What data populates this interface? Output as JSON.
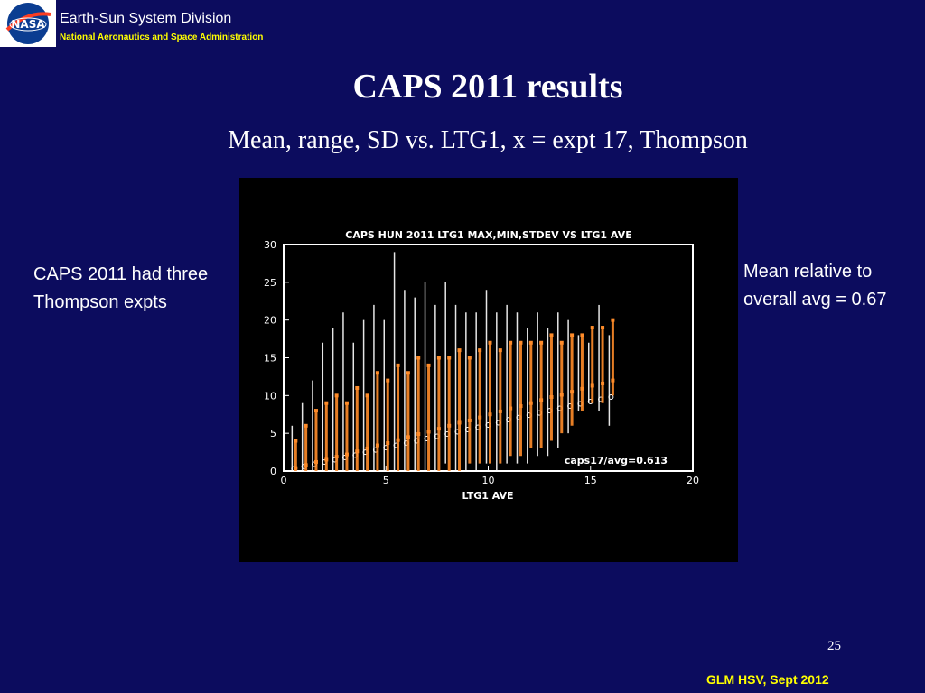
{
  "header": {
    "org_title": "Earth-Sun System Division",
    "org_subtitle": "National Aeronautics and Space Administration",
    "logo_text": "NASA"
  },
  "slide": {
    "title": "CAPS 2011 results",
    "subtitle": "Mean, range, SD vs. LTG1, x = expt 17, Thompson",
    "left_note": "CAPS 2011 had three Thompson expts",
    "right_note": "Mean relative to overall avg = 0.67",
    "page_number": "25",
    "footer": "GLM HSV, Sept 2012"
  },
  "chart_data": {
    "type": "scatter",
    "title": "CAPS HUN 2011 LTG1 MAX,MIN,STDEV VS LTG1 AVE",
    "xlabel": "LTG1 AVE",
    "ylabel": "",
    "xlim": [
      0,
      20
    ],
    "ylim": [
      0,
      30
    ],
    "x_ticks": [
      "0",
      "5",
      "10",
      "15",
      "20"
    ],
    "y_ticks": [
      "0",
      "5",
      "10",
      "15",
      "20",
      "25",
      "30"
    ],
    "annotation": "caps17/avg=0.613",
    "colors": {
      "all_members": "#ffffff",
      "expt17": "#ff8c2a",
      "background": "#000000"
    },
    "series": [
      {
        "values": [
          {
            "x": 0.5,
            "mean": 0.3,
            "min": 0,
            "max": 6
          },
          {
            "x": 1.0,
            "mean": 0.6,
            "min": 0,
            "max": 9
          },
          {
            "x": 1.5,
            "mean": 0.9,
            "min": 0,
            "max": 12
          },
          {
            "x": 2.0,
            "mean": 1.2,
            "min": 0,
            "max": 17
          },
          {
            "x": 2.5,
            "mean": 1.5,
            "min": 0,
            "max": 19
          },
          {
            "x": 3.0,
            "mean": 1.8,
            "min": 0,
            "max": 21
          },
          {
            "x": 3.5,
            "mean": 2.1,
            "min": 0,
            "max": 17
          },
          {
            "x": 4.0,
            "mean": 2.5,
            "min": 0,
            "max": 20
          },
          {
            "x": 4.5,
            "mean": 2.8,
            "min": 0,
            "max": 22
          },
          {
            "x": 5.0,
            "mean": 3.1,
            "min": 0,
            "max": 20
          },
          {
            "x": 5.5,
            "mean": 3.4,
            "min": 0,
            "max": 29
          },
          {
            "x": 6.0,
            "mean": 3.7,
            "min": 0,
            "max": 24
          },
          {
            "x": 6.5,
            "mean": 4.0,
            "min": 0,
            "max": 23
          },
          {
            "x": 7.0,
            "mean": 4.3,
            "min": 0,
            "max": 25
          },
          {
            "x": 7.5,
            "mean": 4.6,
            "min": 0,
            "max": 22
          },
          {
            "x": 8.0,
            "mean": 4.9,
            "min": 1,
            "max": 25
          },
          {
            "x": 8.5,
            "mean": 5.2,
            "min": 0,
            "max": 22
          },
          {
            "x": 9.0,
            "mean": 5.5,
            "min": 0,
            "max": 21
          },
          {
            "x": 9.5,
            "mean": 5.8,
            "min": 0,
            "max": 21
          },
          {
            "x": 10.0,
            "mean": 6.1,
            "min": 1,
            "max": 24
          },
          {
            "x": 10.5,
            "mean": 6.4,
            "min": 0,
            "max": 21
          },
          {
            "x": 11.0,
            "mean": 6.8,
            "min": 1,
            "max": 22
          },
          {
            "x": 11.5,
            "mean": 7.1,
            "min": 1,
            "max": 21
          },
          {
            "x": 12.0,
            "mean": 7.4,
            "min": 1,
            "max": 19
          },
          {
            "x": 12.5,
            "mean": 7.7,
            "min": 2,
            "max": 21
          },
          {
            "x": 13.0,
            "mean": 8.0,
            "min": 2,
            "max": 19
          },
          {
            "x": 13.5,
            "mean": 8.3,
            "min": 3,
            "max": 21
          },
          {
            "x": 14.0,
            "mean": 8.6,
            "min": 5,
            "max": 20
          },
          {
            "x": 14.5,
            "mean": 8.9,
            "min": 8,
            "max": 18
          },
          {
            "x": 15.0,
            "mean": 9.2,
            "min": 9,
            "max": 17
          },
          {
            "x": 15.5,
            "mean": 9.5,
            "min": 8,
            "max": 22
          },
          {
            "x": 16.0,
            "mean": 9.8,
            "min": 6,
            "max": 18
          }
        ]
      },
      {
        "values": [
          {
            "x": 0.5,
            "mean": 0.4,
            "min": 0,
            "max": 4
          },
          {
            "x": 1.0,
            "mean": 0.8,
            "min": 0,
            "max": 6
          },
          {
            "x": 1.5,
            "mean": 1.2,
            "min": 0,
            "max": 8
          },
          {
            "x": 2.0,
            "mean": 1.5,
            "min": 0,
            "max": 9
          },
          {
            "x": 2.5,
            "mean": 1.9,
            "min": 0,
            "max": 10
          },
          {
            "x": 3.0,
            "mean": 2.2,
            "min": 0,
            "max": 9
          },
          {
            "x": 3.5,
            "mean": 2.6,
            "min": 0,
            "max": 11
          },
          {
            "x": 4.0,
            "mean": 3.0,
            "min": 0,
            "max": 10
          },
          {
            "x": 4.5,
            "mean": 3.4,
            "min": 0,
            "max": 13
          },
          {
            "x": 5.0,
            "mean": 3.7,
            "min": 0,
            "max": 12
          },
          {
            "x": 5.5,
            "mean": 4.1,
            "min": 0,
            "max": 14
          },
          {
            "x": 6.0,
            "mean": 4.5,
            "min": 0,
            "max": 13
          },
          {
            "x": 6.5,
            "mean": 4.9,
            "min": 0,
            "max": 15
          },
          {
            "x": 7.0,
            "mean": 5.2,
            "min": 0,
            "max": 14
          },
          {
            "x": 7.5,
            "mean": 5.6,
            "min": 0,
            "max": 15
          },
          {
            "x": 8.0,
            "mean": 6.0,
            "min": 0,
            "max": 15
          },
          {
            "x": 8.5,
            "mean": 6.4,
            "min": 0,
            "max": 16
          },
          {
            "x": 9.0,
            "mean": 6.7,
            "min": 1,
            "max": 15
          },
          {
            "x": 9.5,
            "mean": 7.1,
            "min": 1,
            "max": 16
          },
          {
            "x": 10.0,
            "mean": 7.5,
            "min": 1,
            "max": 17
          },
          {
            "x": 10.5,
            "mean": 7.9,
            "min": 1,
            "max": 16
          },
          {
            "x": 11.0,
            "mean": 8.3,
            "min": 2,
            "max": 17
          },
          {
            "x": 11.5,
            "mean": 8.6,
            "min": 2,
            "max": 17
          },
          {
            "x": 12.0,
            "mean": 9.0,
            "min": 3,
            "max": 17
          },
          {
            "x": 12.5,
            "mean": 9.4,
            "min": 3,
            "max": 17
          },
          {
            "x": 13.0,
            "mean": 9.8,
            "min": 4,
            "max": 18
          },
          {
            "x": 13.5,
            "mean": 10.1,
            "min": 5,
            "max": 17
          },
          {
            "x": 14.0,
            "mean": 10.5,
            "min": 6,
            "max": 18
          },
          {
            "x": 14.5,
            "mean": 10.9,
            "min": 8,
            "max": 18
          },
          {
            "x": 15.0,
            "mean": 11.3,
            "min": 9,
            "max": 19
          },
          {
            "x": 15.5,
            "mean": 11.6,
            "min": 9,
            "max": 19
          },
          {
            "x": 16.0,
            "mean": 12.0,
            "min": 10,
            "max": 20
          }
        ]
      }
    ]
  }
}
